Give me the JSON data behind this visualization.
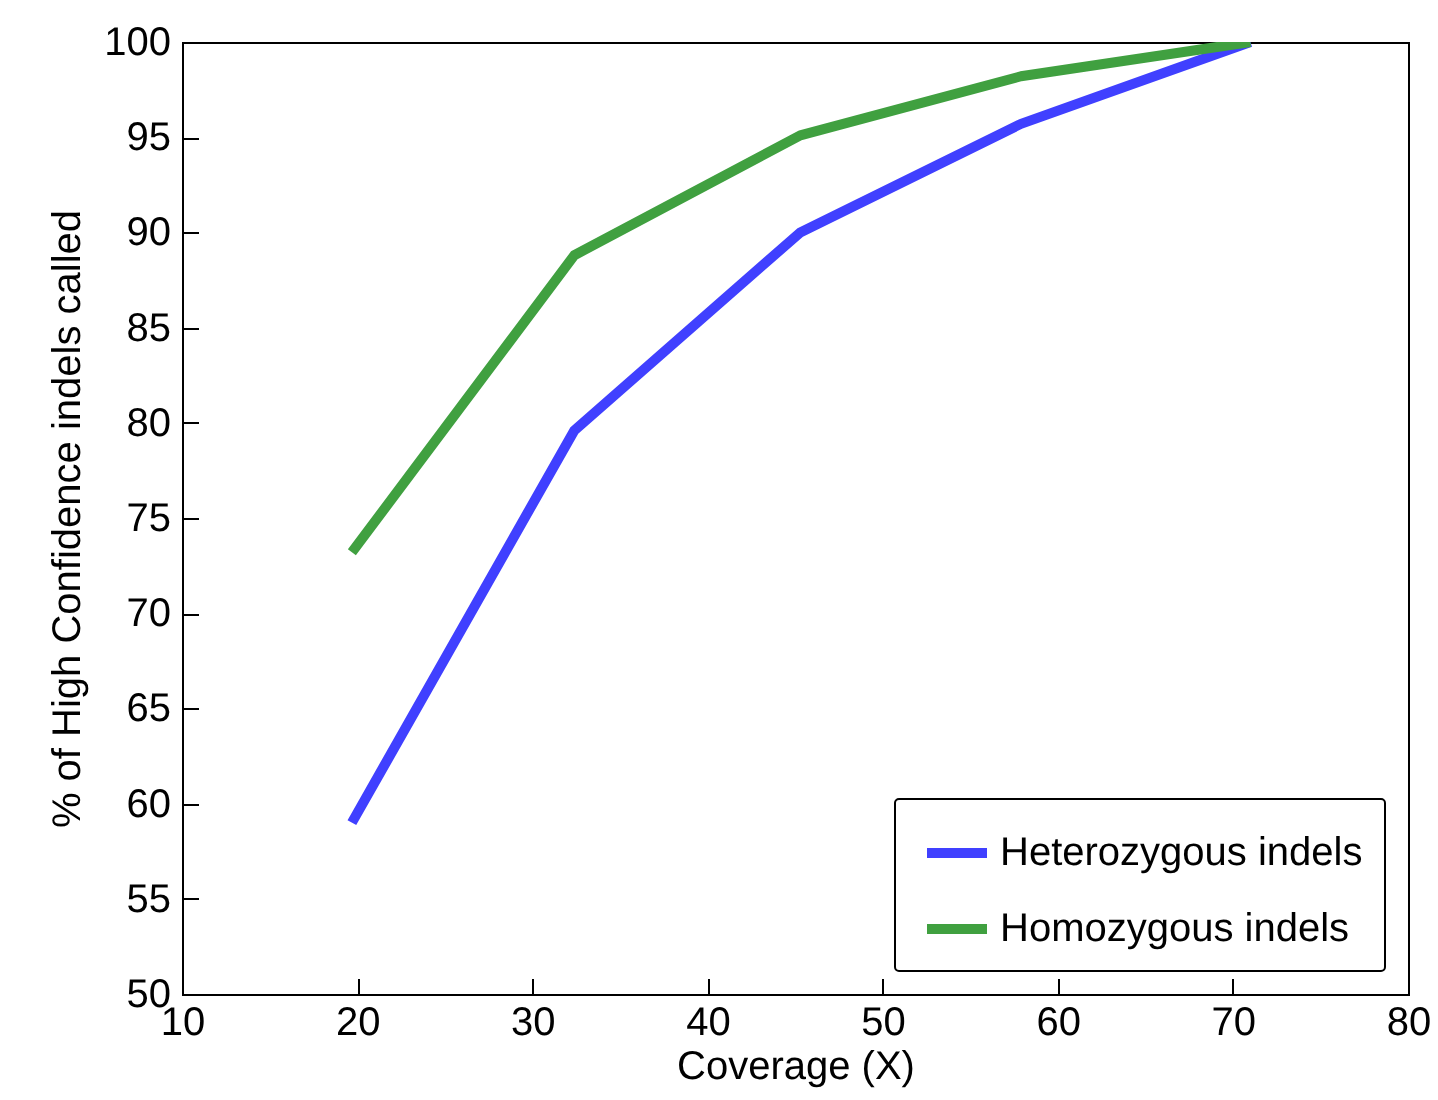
{
  "chart_data": {
    "type": "line",
    "xlabel": "Coverage (X)",
    "ylabel": "% of High Confidence indels called",
    "xlim": [
      10,
      80
    ],
    "xticks": [
      10,
      20,
      30,
      40,
      50,
      60,
      70,
      80
    ],
    "ylim": [
      50,
      100
    ],
    "yticks": [
      50,
      55,
      60,
      65,
      70,
      75,
      80,
      85,
      90,
      95,
      100
    ],
    "grid": false,
    "legend": "bottom right",
    "line_style": "solid",
    "series": [
      {
        "name": "Heterozygous indels",
        "color": "#4040ff",
        "x": [
          19.7,
          32.4,
          45.3,
          57.9,
          71
        ],
        "values": [
          59.0,
          79.6,
          90.0,
          95.7,
          100
        ]
      },
      {
        "name": "Homozygous indels",
        "color": "#40a040",
        "x": [
          19.7,
          32.4,
          45.3,
          57.9,
          71
        ],
        "values": [
          73.2,
          88.8,
          95.1,
          98.2,
          100
        ]
      }
    ]
  }
}
